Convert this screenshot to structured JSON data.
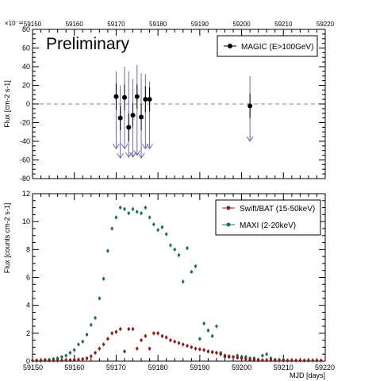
{
  "colors": {
    "magic": "#000000",
    "upper_limit": "#6a6a9a",
    "swift": "#8b1a1a",
    "maxi": "#1e6e55",
    "zero_line": "#888888"
  },
  "chart_data": [
    {
      "type": "scatter",
      "title": "",
      "watermark": "Preliminary",
      "exponent_label": "×10⁻¹²",
      "xlabel": "",
      "ylabel": "Flux [cm-2 s-1]",
      "xlim": [
        59150,
        59220
      ],
      "ylim": [
        -80,
        80
      ],
      "x_ticks": [
        59150,
        59160,
        59170,
        59180,
        59190,
        59200,
        59210,
        59220
      ],
      "y_ticks": [
        -80,
        -60,
        -40,
        -20,
        0,
        20,
        40,
        60,
        80
      ],
      "x_axis_position": "top",
      "zero_line": true,
      "legend": {
        "placement": "top-right"
      },
      "series": [
        {
          "name": "MAGIC (E>100GeV)",
          "points": [
            {
              "x": 59170.0,
              "y": 8,
              "err": 14
            },
            {
              "x": 59171.0,
              "y": -15,
              "err": 13
            },
            {
              "x": 59172.0,
              "y": 7,
              "err": 14
            },
            {
              "x": 59173.0,
              "y": -25,
              "err": 15
            },
            {
              "x": 59174.0,
              "y": -12,
              "err": 13
            },
            {
              "x": 59175.0,
              "y": 8,
              "err": 13
            },
            {
              "x": 59176.0,
              "y": -14,
              "err": 14
            },
            {
              "x": 59177.0,
              "y": 5,
              "err": 14
            },
            {
              "x": 59178.0,
              "y": 5,
              "err": 13
            },
            {
              "x": 59202.0,
              "y": -2,
              "err": 13
            }
          ],
          "upper_limits": [
            {
              "x": 59170.0,
              "top": 35,
              "bottom": -48
            },
            {
              "x": 59171.0,
              "top": 20,
              "bottom": -58
            },
            {
              "x": 59172.0,
              "top": 40,
              "bottom": -48
            },
            {
              "x": 59173.0,
              "top": 35,
              "bottom": -57
            },
            {
              "x": 59174.0,
              "top": 27,
              "bottom": -57
            },
            {
              "x": 59175.0,
              "top": 42,
              "bottom": -55
            },
            {
              "x": 59176.0,
              "top": 33,
              "bottom": -58
            },
            {
              "x": 59177.0,
              "top": 32,
              "bottom": -48
            },
            {
              "x": 59178.0,
              "top": 24,
              "bottom": -48
            },
            {
              "x": 59202.0,
              "top": 30,
              "bottom": -40
            }
          ]
        }
      ]
    },
    {
      "type": "scatter",
      "title": "",
      "xlabel": "MJD [days]",
      "ylabel": "Flux [counts cm-2 s-1]",
      "xlim": [
        59150,
        59220
      ],
      "ylim": [
        0,
        12
      ],
      "x_ticks": [
        59150,
        59160,
        59170,
        59180,
        59190,
        59200,
        59210,
        59220
      ],
      "y_ticks": [
        0,
        2,
        4,
        6,
        8,
        10,
        12
      ],
      "legend": {
        "placement": "top-right"
      },
      "series": [
        {
          "name": "Swift/BAT (15-50keV)",
          "points": [
            {
              "x": 59150,
              "y": 0.05
            },
            {
              "x": 59151,
              "y": 0.05
            },
            {
              "x": 59152,
              "y": 0.05
            },
            {
              "x": 59153,
              "y": 0.05
            },
            {
              "x": 59154,
              "y": 0.05
            },
            {
              "x": 59155,
              "y": 0.05
            },
            {
              "x": 59156,
              "y": 0.05
            },
            {
              "x": 59157,
              "y": 0.06
            },
            {
              "x": 59158,
              "y": 0.07
            },
            {
              "x": 59159,
              "y": 0.08
            },
            {
              "x": 59160,
              "y": 0.1
            },
            {
              "x": 59161,
              "y": 0.12
            },
            {
              "x": 59162,
              "y": 0.15
            },
            {
              "x": 59163,
              "y": 0.2
            },
            {
              "x": 59164,
              "y": 0.35
            },
            {
              "x": 59165,
              "y": 0.6
            },
            {
              "x": 59166,
              "y": 0.9
            },
            {
              "x": 59167,
              "y": 1.2
            },
            {
              "x": 59168,
              "y": 1.6
            },
            {
              "x": 59169,
              "y": 2.0
            },
            {
              "x": 59170,
              "y": 2.1
            },
            {
              "x": 59171,
              "y": 2.3
            },
            {
              "x": 59172,
              "y": 0.7
            },
            {
              "x": 59173,
              "y": 2.3
            },
            {
              "x": 59174,
              "y": 2.3
            },
            {
              "x": 59175,
              "y": 0.9
            },
            {
              "x": 59176,
              "y": 1.5
            },
            {
              "x": 59177,
              "y": 1.8
            },
            {
              "x": 59178,
              "y": 0.9
            },
            {
              "x": 59179,
              "y": 2.0
            },
            {
              "x": 59180,
              "y": 2.0
            },
            {
              "x": 59181,
              "y": 1.8
            },
            {
              "x": 59182,
              "y": 1.7
            },
            {
              "x": 59183,
              "y": 1.5
            },
            {
              "x": 59184,
              "y": 1.4
            },
            {
              "x": 59185,
              "y": 1.3
            },
            {
              "x": 59186,
              "y": 1.2
            },
            {
              "x": 59187,
              "y": 1.1
            },
            {
              "x": 59188,
              "y": 1.0
            },
            {
              "x": 59189,
              "y": 0.9
            },
            {
              "x": 59190,
              "y": 0.85
            },
            {
              "x": 59191,
              "y": 0.8
            },
            {
              "x": 59192,
              "y": 0.7
            },
            {
              "x": 59193,
              "y": 0.65
            },
            {
              "x": 59194,
              "y": 0.6
            },
            {
              "x": 59195,
              "y": 0.5
            },
            {
              "x": 59196,
              "y": 0.4
            },
            {
              "x": 59197,
              "y": 0.35
            },
            {
              "x": 59198,
              "y": 0.3
            },
            {
              "x": 59199,
              "y": 0.25
            },
            {
              "x": 59200,
              "y": 0.2
            },
            {
              "x": 59201,
              "y": 0.15
            },
            {
              "x": 59202,
              "y": 0.1
            },
            {
              "x": 59203,
              "y": 0.1
            },
            {
              "x": 59204,
              "y": 0.08
            },
            {
              "x": 59205,
              "y": 0.07
            },
            {
              "x": 59206,
              "y": 0.06
            },
            {
              "x": 59207,
              "y": 0.06
            },
            {
              "x": 59208,
              "y": 0.05
            },
            {
              "x": 59209,
              "y": 0.05
            },
            {
              "x": 59210,
              "y": 0.05
            },
            {
              "x": 59211,
              "y": 0.05
            },
            {
              "x": 59212,
              "y": 0.05
            },
            {
              "x": 59213,
              "y": 0.05
            },
            {
              "x": 59214,
              "y": 0.05
            },
            {
              "x": 59215,
              "y": 0.05
            },
            {
              "x": 59216,
              "y": 0.05
            },
            {
              "x": 59217,
              "y": 0.05
            },
            {
              "x": 59218,
              "y": 0.05
            },
            {
              "x": 59219,
              "y": 0.05
            }
          ]
        },
        {
          "name": "MAXI (2-20keV)",
          "points": [
            {
              "x": 59151,
              "y": 0.05
            },
            {
              "x": 59152,
              "y": 0.05
            },
            {
              "x": 59153,
              "y": 0.1
            },
            {
              "x": 59154,
              "y": 0.1
            },
            {
              "x": 59155,
              "y": 0.15
            },
            {
              "x": 59156,
              "y": 0.2
            },
            {
              "x": 59157,
              "y": 0.3
            },
            {
              "x": 59158,
              "y": 0.4
            },
            {
              "x": 59159,
              "y": 0.6
            },
            {
              "x": 59160,
              "y": 0.8
            },
            {
              "x": 59161,
              "y": 1.2
            },
            {
              "x": 59162,
              "y": 1.4
            },
            {
              "x": 59163,
              "y": 1.9
            },
            {
              "x": 59164,
              "y": 2.6
            },
            {
              "x": 59165,
              "y": 3.1
            },
            {
              "x": 59166,
              "y": 4.5
            },
            {
              "x": 59167,
              "y": 5.9
            },
            {
              "x": 59168,
              "y": 7.9
            },
            {
              "x": 59169,
              "y": 9.5
            },
            {
              "x": 59170,
              "y": 10.3
            },
            {
              "x": 59171,
              "y": 11.0
            },
            {
              "x": 59172,
              "y": 10.9
            },
            {
              "x": 59173,
              "y": 10.6
            },
            {
              "x": 59174,
              "y": 10.9
            },
            {
              "x": 59175,
              "y": 10.7
            },
            {
              "x": 59176,
              "y": 10.6
            },
            {
              "x": 59177,
              "y": 11.0
            },
            {
              "x": 59178,
              "y": 10.3
            },
            {
              "x": 59179,
              "y": 9.8
            },
            {
              "x": 59180,
              "y": 9.4
            },
            {
              "x": 59181,
              "y": 9.6
            },
            {
              "x": 59182,
              "y": 9.1
            },
            {
              "x": 59183,
              "y": 8.3
            },
            {
              "x": 59184,
              "y": 8.0
            },
            {
              "x": 59185,
              "y": 7.6
            },
            {
              "x": 59186,
              "y": 5.7
            },
            {
              "x": 59187,
              "y": 8.1
            },
            {
              "x": 59188,
              "y": 6.4
            },
            {
              "x": 59189,
              "y": 6.8
            },
            {
              "x": 59190,
              "y": 1.6
            },
            {
              "x": 59191,
              "y": 2.7
            },
            {
              "x": 59192,
              "y": 2.2
            },
            {
              "x": 59193,
              "y": 1.8
            },
            {
              "x": 59194,
              "y": 2.5
            },
            {
              "x": 59195,
              "y": 0.6
            },
            {
              "x": 59196,
              "y": 0.3
            },
            {
              "x": 59197,
              "y": 0.3
            },
            {
              "x": 59198,
              "y": 0.3
            },
            {
              "x": 59199,
              "y": 0.4
            },
            {
              "x": 59200,
              "y": 0.3
            },
            {
              "x": 59201,
              "y": 0.3
            },
            {
              "x": 59202,
              "y": 0.2
            },
            {
              "x": 59203,
              "y": 0.2
            },
            {
              "x": 59204,
              "y": 0.1
            },
            {
              "x": 59205,
              "y": 0.4
            },
            {
              "x": 59206,
              "y": 0.5
            },
            {
              "x": 59207,
              "y": 0.2
            },
            {
              "x": 59208,
              "y": 0.1
            },
            {
              "x": 59209,
              "y": 0.1
            },
            {
              "x": 59210,
              "y": 0.1
            }
          ]
        }
      ]
    }
  ]
}
